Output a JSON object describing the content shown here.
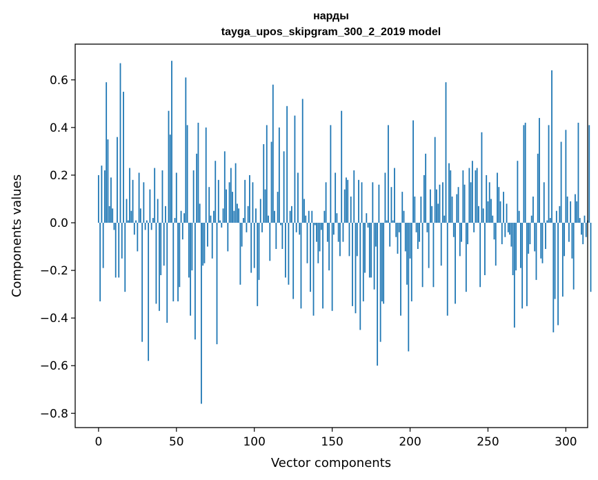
{
  "chart_data": {
    "type": "bar",
    "title": "нарды",
    "subtitle": "tayga_upos_skipgram_300_2_2019 model",
    "xlabel": "Vector components",
    "ylabel": "Components values",
    "xlim": [
      -15,
      314
    ],
    "ylim": [
      -0.86,
      0.75
    ],
    "xticks": [
      0,
      50,
      100,
      150,
      200,
      250,
      300
    ],
    "xtick_labels": [
      "0",
      "50",
      "100",
      "150",
      "200",
      "250",
      "300"
    ],
    "yticks": [
      -0.8,
      -0.6,
      -0.4,
      -0.2,
      0.0,
      0.2,
      0.4,
      0.6
    ],
    "ytick_labels": [
      "−0.8",
      "−0.6",
      "−0.4",
      "−0.2",
      "0.0",
      "0.2",
      "0.4",
      "0.6"
    ],
    "grid": false,
    "legend": "none",
    "bar_color": "#1f77b4",
    "values": [
      0.2,
      -0.33,
      0.24,
      -0.19,
      0.22,
      0.59,
      0.35,
      0.07,
      0.19,
      0.06,
      -0.03,
      -0.23,
      0.36,
      -0.23,
      0.67,
      -0.15,
      0.55,
      -0.29,
      0.1,
      0.01,
      0.23,
      0.05,
      0.18,
      -0.05,
      0.01,
      -0.12,
      0.21,
      0.06,
      -0.5,
      0.17,
      -0.03,
      0.01,
      -0.58,
      0.14,
      -0.03,
      0.02,
      0.23,
      -0.34,
      0.1,
      -0.37,
      -0.22,
      0.22,
      -0.18,
      0.07,
      -0.42,
      0.47,
      0.37,
      0.68,
      -0.33,
      0.02,
      0.21,
      -0.33,
      -0.27,
      0.05,
      -0.07,
      0.04,
      0.61,
      0.41,
      -0.23,
      -0.39,
      -0.2,
      0.22,
      -0.49,
      0.29,
      0.42,
      0.08,
      -0.76,
      -0.18,
      -0.17,
      0.4,
      -0.1,
      0.15,
      0.03,
      -0.15,
      0.05,
      0.26,
      -0.51,
      0.18,
      0.01,
      -0.02,
      0.06,
      0.3,
      0.14,
      -0.12,
      0.17,
      0.23,
      0.13,
      0.05,
      0.25,
      0.08,
      0.06,
      -0.26,
      -0.1,
      0.02,
      0.18,
      -0.04,
      0.07,
      0.2,
      -0.21,
      0.17,
      -0.19,
      0.06,
      -0.35,
      -0.24,
      0.1,
      -0.04,
      0.33,
      0.14,
      0.41,
      0.03,
      -0.16,
      0.34,
      0.58,
      0.05,
      -0.11,
      0.13,
      0.4,
      -0.01,
      -0.11,
      0.3,
      -0.23,
      0.49,
      -0.26,
      0.05,
      0.07,
      -0.32,
      0.45,
      -0.04,
      0.21,
      -0.05,
      -0.36,
      0.52,
      0.1,
      0.03,
      -0.17,
      0.05,
      -0.29,
      0.05,
      -0.39,
      -0.01,
      -0.08,
      -0.17,
      -0.12,
      -0.03,
      -0.36,
      0.05,
      0.17,
      -0.08,
      -0.2,
      0.41,
      -0.37,
      -0.05,
      0.21,
      0.04,
      -0.08,
      -0.14,
      0.47,
      -0.08,
      0.14,
      0.19,
      0.18,
      -0.14,
      0.11,
      -0.35,
      0.22,
      -0.38,
      -0.14,
      0.18,
      -0.45,
      0.17,
      -0.33,
      -0.21,
      0.04,
      -0.02,
      -0.23,
      -0.23,
      0.17,
      -0.28,
      -0.1,
      -0.6,
      0.16,
      -0.5,
      -0.33,
      -0.34,
      0.21,
      0.01,
      0.41,
      -0.1,
      0.15,
      0.01,
      0.23,
      -0.06,
      -0.13,
      -0.04,
      -0.39,
      0.13,
      0.05,
      -0.12,
      -0.26,
      -0.54,
      -0.15,
      -0.33,
      0.43,
      0.11,
      -0.04,
      -0.11,
      -0.08,
      0.11,
      -0.27,
      0.2,
      0.29,
      -0.04,
      -0.19,
      0.14,
      0.07,
      -0.27,
      0.36,
      0.14,
      0.08,
      0.16,
      -0.18,
      0.17,
      0.03,
      0.59,
      -0.39,
      0.25,
      0.22,
      0.11,
      -0.06,
      -0.34,
      0.12,
      0.15,
      -0.14,
      -0.08,
      0.22,
      0.16,
      -0.29,
      -0.09,
      0.23,
      0.17,
      0.26,
      -0.04,
      0.22,
      0.23,
      0.07,
      -0.27,
      0.38,
      0.06,
      -0.22,
      0.2,
      0.09,
      0.17,
      0.1,
      0.03,
      -0.07,
      -0.18,
      0.21,
      0.15,
      0.09,
      -0.09,
      0.13,
      -0.06,
      0.08,
      -0.04,
      -0.05,
      -0.1,
      -0.22,
      -0.44,
      -0.2,
      0.26,
      0.05,
      -0.19,
      -0.36,
      0.41,
      0.42,
      -0.35,
      -0.13,
      -0.09,
      0.03,
      0.11,
      -0.12,
      -0.24,
      0.29,
      0.44,
      -0.15,
      -0.17,
      0.17,
      -0.11,
      0.01,
      0.41,
      0.02,
      0.64,
      -0.46,
      -0.32,
      0.05,
      -0.43,
      0.07,
      0.34,
      -0.31,
      -0.14,
      0.39,
      0.11,
      -0.08,
      0.09,
      -0.15,
      -0.28,
      0.12,
      0.09,
      0.42,
      0.02,
      -0.05,
      -0.09,
      0.03,
      -0.06,
      0.01,
      0.41,
      -0.29
    ]
  }
}
